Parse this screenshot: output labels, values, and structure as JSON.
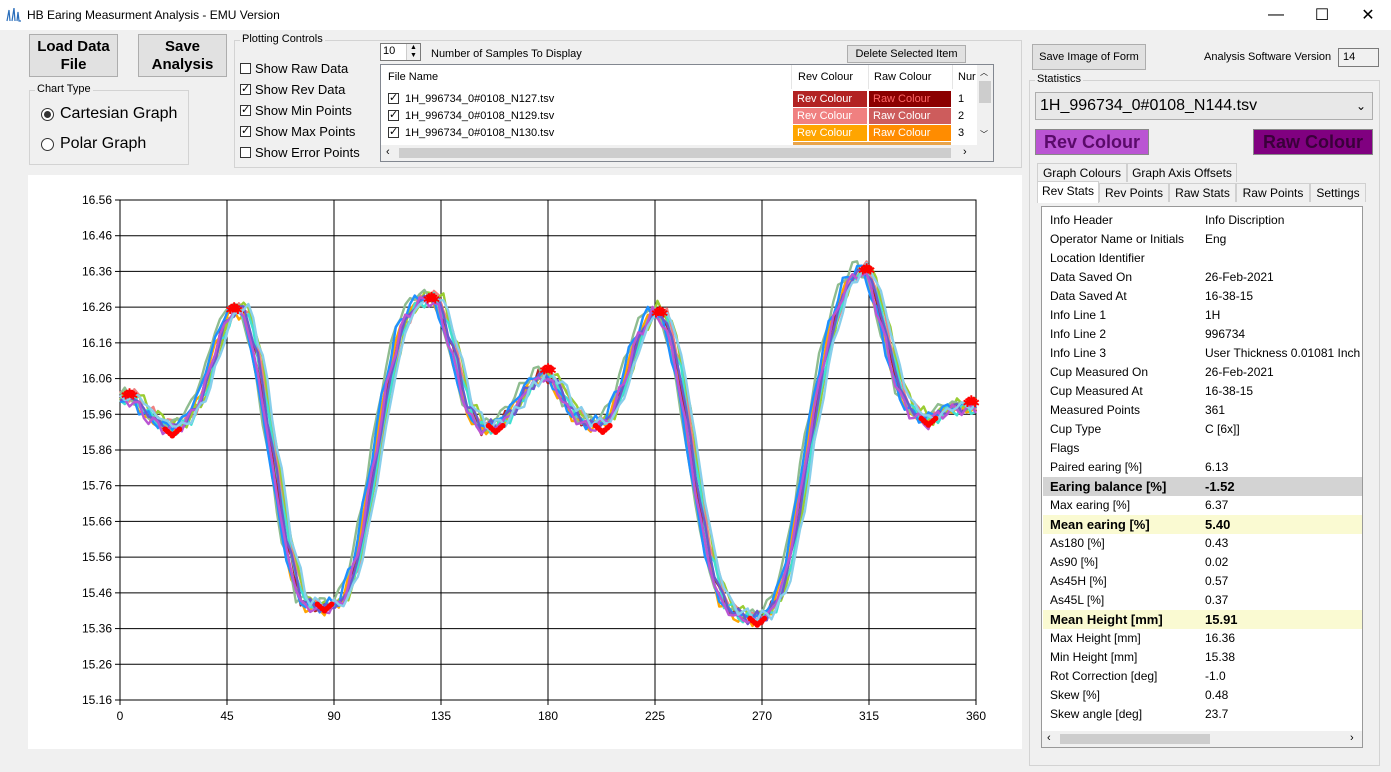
{
  "window": {
    "title": "HB Earing Measurment Analysis - EMU Version",
    "icon": "waveform-icon",
    "minimize_icon": "minimize-icon",
    "maximize_icon": "maximize-icon",
    "close_icon": "close-icon"
  },
  "buttons": {
    "load": "Load Data File",
    "save": "Save Analysis",
    "delete": "Delete Selected Item",
    "save_image": "Save Image of Form"
  },
  "chart_type": {
    "label": "Chart Type",
    "options": [
      "Cartesian Graph",
      "Polar Graph"
    ],
    "selected": "Cartesian Graph"
  },
  "plotting": {
    "label": "Plotting Controls",
    "samples_value": "10",
    "samples_label": "Number of Samples To Display",
    "checkboxes": [
      {
        "label": "Show Raw Data",
        "checked": false
      },
      {
        "label": "Show Rev Data",
        "checked": true
      },
      {
        "label": "Show Min Points",
        "checked": true
      },
      {
        "label": "Show Max Points",
        "checked": true
      },
      {
        "label": "Show Error Points",
        "checked": false
      }
    ]
  },
  "file_list": {
    "headers": [
      "File Name",
      "Rev Colour",
      "Raw Colour",
      "Nur"
    ],
    "rows": [
      {
        "file": "1H_996734_0#0108_N127.tsv",
        "rev": "Rev Colour",
        "raw": "Raw Colour",
        "num": "1",
        "rev_color": "#b22222",
        "raw_color": "#8b0000"
      },
      {
        "file": "1H_996734_0#0108_N129.tsv",
        "rev": "Rev Colour",
        "raw": "Raw Colour",
        "num": "2",
        "rev_color": "#f08080",
        "raw_color": "#cd5c5c"
      },
      {
        "file": "1H_996734_0#0108_N130.tsv",
        "rev": "Rev Colour",
        "raw": "Raw Colour",
        "num": "3",
        "rev_color": "#ffa500",
        "raw_color": "#ff8c00"
      }
    ]
  },
  "right": {
    "version_label": "Analysis Software Version",
    "version_value": "14",
    "statistics_label": "Statistics",
    "selected_file": "1H_996734_0#0108_N144.tsv",
    "rev_colour_btn": "Rev Colour",
    "raw_colour_btn": "Raw Colour",
    "rev_colour": "#ba55d3",
    "raw_colour": "#800080",
    "tabs_top": [
      "Graph Colours",
      "Graph Axis Offsets"
    ],
    "tabs": [
      "Rev Stats",
      "Rev Points",
      "Raw Stats",
      "Raw Points",
      "Settings"
    ],
    "active_tab": "Rev Stats"
  },
  "stats": [
    {
      "k": "Info Header",
      "v": "Info Discription",
      "s": ""
    },
    {
      "k": "Operator Name or Initials",
      "v": "Eng",
      "s": ""
    },
    {
      "k": "Location Identifier",
      "v": "",
      "s": ""
    },
    {
      "k": "Data Saved On",
      "v": "26-Feb-2021",
      "s": ""
    },
    {
      "k": "Data Saved At",
      "v": "16-38-15",
      "s": ""
    },
    {
      "k": "Info Line 1",
      "v": "1H",
      "s": ""
    },
    {
      "k": "Info Line 2",
      "v": "996734",
      "s": ""
    },
    {
      "k": "Info Line 3",
      "v": "User Thickness 0.01081 Inch",
      "s": ""
    },
    {
      "k": "Cup Measured On",
      "v": "26-Feb-2021",
      "s": ""
    },
    {
      "k": "Cup Measured At",
      "v": "16-38-15",
      "s": ""
    },
    {
      "k": "Measured Points",
      "v": "361",
      "s": ""
    },
    {
      "k": "Cup Type",
      "v": "C [6x]]",
      "s": ""
    },
    {
      "k": "Flags",
      "v": "",
      "s": ""
    },
    {
      "k": "Paired earing [%]",
      "v": "6.13",
      "s": ""
    },
    {
      "k": "Earing balance [%]",
      "v": "-1.52",
      "s": "b1"
    },
    {
      "k": "Max earing [%]",
      "v": "6.37",
      "s": ""
    },
    {
      "k": "Mean earing [%]",
      "v": "5.40",
      "s": "b2"
    },
    {
      "k": "As180 [%]",
      "v": "0.43",
      "s": ""
    },
    {
      "k": "As90 [%]",
      "v": "0.02",
      "s": ""
    },
    {
      "k": "As45H [%]",
      "v": "0.57",
      "s": ""
    },
    {
      "k": "As45L [%]",
      "v": "0.37",
      "s": ""
    },
    {
      "k": "Mean Height [mm]",
      "v": "15.91",
      "s": "b2"
    },
    {
      "k": "Max Height [mm]",
      "v": "16.36",
      "s": ""
    },
    {
      "k": "Min Height [mm]",
      "v": "15.38",
      "s": ""
    },
    {
      "k": "Rot Correction [deg]",
      "v": "-1.0",
      "s": ""
    },
    {
      "k": "Skew [%]",
      "v": "0.48",
      "s": ""
    },
    {
      "k": "Skew angle [deg]",
      "v": "23.7",
      "s": ""
    }
  ],
  "chart_data": {
    "type": "line",
    "xlim": [
      0,
      360
    ],
    "ylim": [
      15.16,
      16.56
    ],
    "xticks": [
      0,
      45,
      90,
      135,
      180,
      225,
      270,
      315,
      360
    ],
    "yticks": [
      "16.56",
      "16.46",
      "16.36",
      "16.26",
      "16.16",
      "16.06",
      "15.96",
      "15.86",
      "15.76",
      "15.66",
      "15.56",
      "15.46",
      "15.36",
      "15.26",
      "15.16"
    ],
    "grid": true,
    "base_profile": [
      [
        0,
        16.0
      ],
      [
        5,
        16.01
      ],
      [
        10,
        15.97
      ],
      [
        15,
        15.94
      ],
      [
        22,
        15.92
      ],
      [
        28,
        15.94
      ],
      [
        35,
        16.02
      ],
      [
        42,
        16.18
      ],
      [
        48,
        16.26
      ],
      [
        53,
        16.24
      ],
      [
        58,
        16.1
      ],
      [
        64,
        15.85
      ],
      [
        70,
        15.6
      ],
      [
        76,
        15.44
      ],
      [
        82,
        15.42
      ],
      [
        88,
        15.42
      ],
      [
        94,
        15.44
      ],
      [
        100,
        15.56
      ],
      [
        106,
        15.78
      ],
      [
        112,
        16.02
      ],
      [
        118,
        16.2
      ],
      [
        124,
        16.27
      ],
      [
        130,
        16.29
      ],
      [
        134,
        16.27
      ],
      [
        140,
        16.14
      ],
      [
        146,
        15.98
      ],
      [
        152,
        15.92
      ],
      [
        158,
        15.93
      ],
      [
        164,
        15.96
      ],
      [
        170,
        16.02
      ],
      [
        176,
        16.07
      ],
      [
        182,
        16.06
      ],
      [
        188,
        15.99
      ],
      [
        194,
        15.94
      ],
      [
        200,
        15.93
      ],
      [
        206,
        15.95
      ],
      [
        212,
        16.05
      ],
      [
        218,
        16.18
      ],
      [
        224,
        16.25
      ],
      [
        229,
        16.23
      ],
      [
        235,
        16.08
      ],
      [
        241,
        15.82
      ],
      [
        247,
        15.58
      ],
      [
        253,
        15.44
      ],
      [
        259,
        15.4
      ],
      [
        265,
        15.39
      ],
      [
        270,
        15.39
      ],
      [
        276,
        15.43
      ],
      [
        282,
        15.56
      ],
      [
        288,
        15.8
      ],
      [
        294,
        16.04
      ],
      [
        300,
        16.22
      ],
      [
        306,
        16.33
      ],
      [
        312,
        16.37
      ],
      [
        316,
        16.33
      ],
      [
        322,
        16.18
      ],
      [
        328,
        16.02
      ],
      [
        334,
        15.96
      ],
      [
        340,
        15.94
      ],
      [
        346,
        15.97
      ],
      [
        352,
        15.98
      ],
      [
        360,
        15.98
      ]
    ],
    "series_colors": [
      "#b22222",
      "#f08080",
      "#ffa500",
      "#9acd32",
      "#8fbc8f",
      "#40e0d0",
      "#1e90ff",
      "#6a5acd",
      "#ba55d3",
      "#87ceeb"
    ],
    "series_offsets": [
      [
        0,
        0.0
      ],
      [
        1.5,
        0.01
      ],
      [
        -1,
        -0.01
      ],
      [
        2,
        0.015
      ],
      [
        -2,
        0.02
      ],
      [
        1,
        -0.005
      ],
      [
        -1.5,
        0.005
      ],
      [
        0.5,
        0.0
      ],
      [
        -0.5,
        -0.012
      ],
      [
        2.5,
        0.008
      ]
    ],
    "max_points": [
      [
        4,
        16.02
      ],
      [
        48,
        16.26
      ],
      [
        131,
        16.29
      ],
      [
        180,
        16.09
      ],
      [
        227,
        16.25
      ],
      [
        314,
        16.37
      ],
      [
        358,
        16.0
      ]
    ],
    "min_points": [
      [
        22,
        15.9
      ],
      [
        86,
        15.41
      ],
      [
        158,
        15.91
      ],
      [
        203,
        15.91
      ],
      [
        268,
        15.37
      ],
      [
        340,
        15.93
      ]
    ]
  }
}
